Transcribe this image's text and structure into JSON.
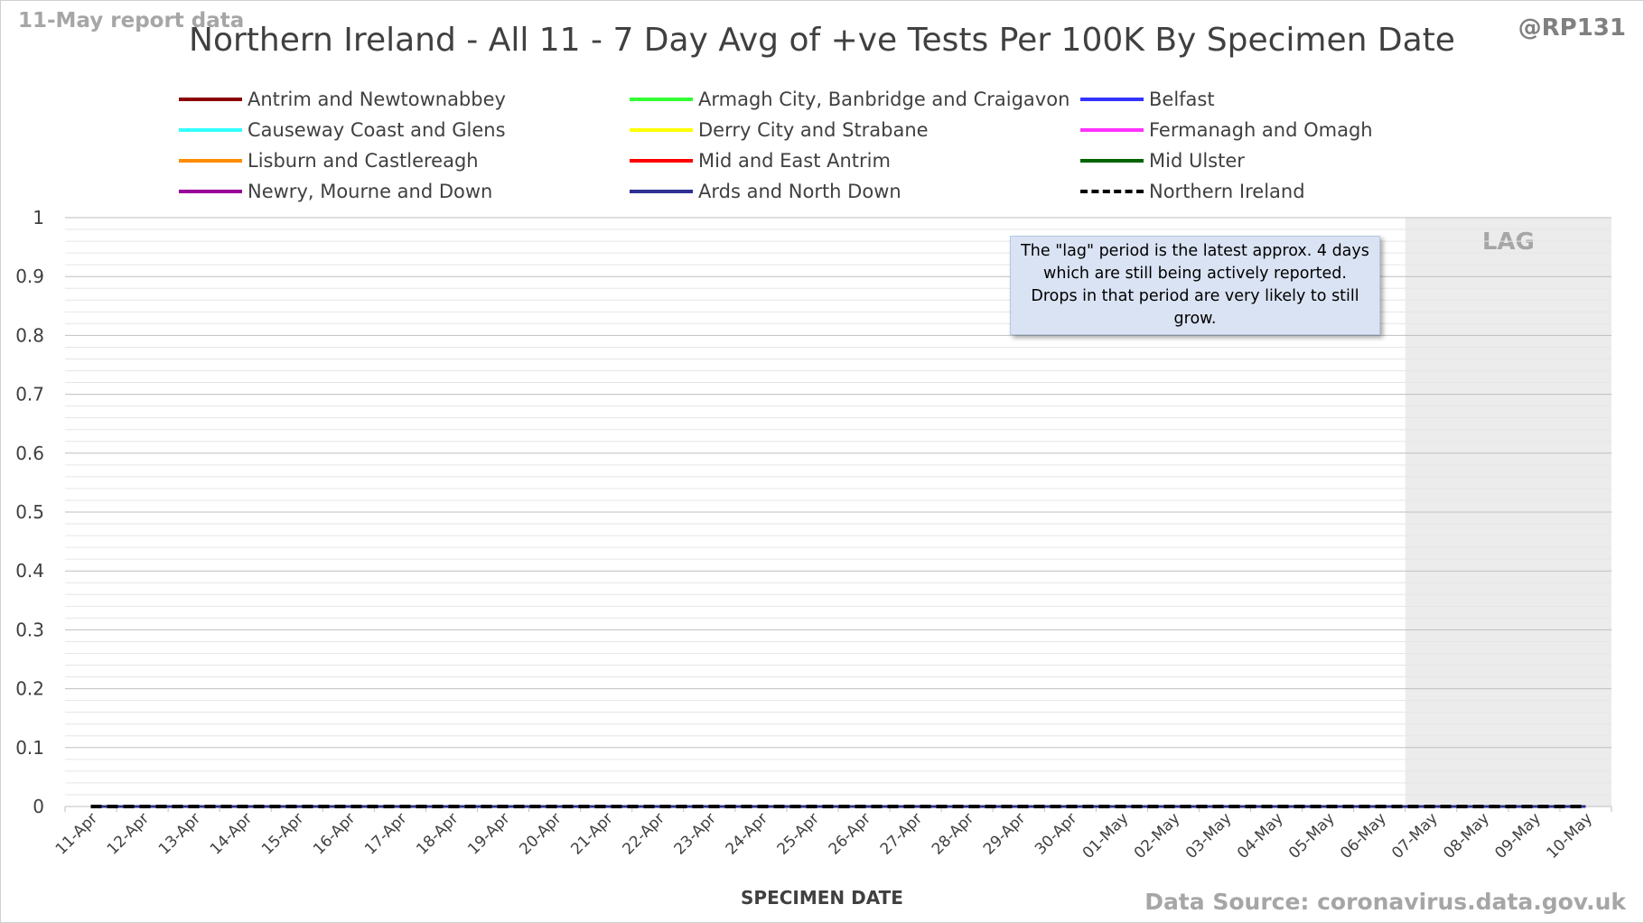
{
  "header": {
    "report_date": "11-May report data",
    "title": "Northern Ireland - All 11 - 7 Day Avg of +ve Tests Per 100K By Specimen Date",
    "handle": "@RP131"
  },
  "footer": {
    "source": "Data Source: coronavirus.data.gov.uk"
  },
  "note": "The \"lag\" period is the latest approx. 4 days which are still being actively reported. Drops in that period are very likely to still grow.",
  "lag_label": "LAG",
  "chart_data": {
    "type": "line",
    "xlabel": "SPECIMEN DATE",
    "ylabel": "",
    "ylim": [
      0,
      1
    ],
    "y_ticks": [
      "0",
      "0.1",
      "0.2",
      "0.3",
      "0.4",
      "0.5",
      "0.6",
      "0.7",
      "0.8",
      "0.9",
      "1"
    ],
    "grid": true,
    "legend_position": "top",
    "categories": [
      "11-Apr",
      "12-Apr",
      "13-Apr",
      "14-Apr",
      "15-Apr",
      "16-Apr",
      "17-Apr",
      "18-Apr",
      "19-Apr",
      "20-Apr",
      "21-Apr",
      "22-Apr",
      "23-Apr",
      "24-Apr",
      "25-Apr",
      "26-Apr",
      "27-Apr",
      "28-Apr",
      "29-Apr",
      "30-Apr",
      "01-May",
      "02-May",
      "03-May",
      "04-May",
      "05-May",
      "06-May",
      "07-May",
      "08-May",
      "09-May",
      "10-May"
    ],
    "lag_start": "07-May",
    "series": [
      {
        "name": "Antrim and Newtownabbey",
        "color": "#8b0000",
        "dashed": false,
        "values": [
          0,
          0,
          0,
          0,
          0,
          0,
          0,
          0,
          0,
          0,
          0,
          0,
          0,
          0,
          0,
          0,
          0,
          0,
          0,
          0,
          0,
          0,
          0,
          0,
          0,
          0,
          0,
          0,
          0,
          0
        ]
      },
      {
        "name": "Armagh City, Banbridge and Craigavon",
        "color": "#33ff33",
        "dashed": false,
        "values": [
          0,
          0,
          0,
          0,
          0,
          0,
          0,
          0,
          0,
          0,
          0,
          0,
          0,
          0,
          0,
          0,
          0,
          0,
          0,
          0,
          0,
          0,
          0,
          0,
          0,
          0,
          0,
          0,
          0,
          0
        ]
      },
      {
        "name": "Belfast",
        "color": "#3333ff",
        "dashed": false,
        "values": [
          0,
          0,
          0,
          0,
          0,
          0,
          0,
          0,
          0,
          0,
          0,
          0,
          0,
          0,
          0,
          0,
          0,
          0,
          0,
          0,
          0,
          0,
          0,
          0,
          0,
          0,
          0,
          0,
          0,
          0
        ]
      },
      {
        "name": "Causeway Coast and Glens",
        "color": "#33ffff",
        "dashed": false,
        "values": [
          0,
          0,
          0,
          0,
          0,
          0,
          0,
          0,
          0,
          0,
          0,
          0,
          0,
          0,
          0,
          0,
          0,
          0,
          0,
          0,
          0,
          0,
          0,
          0,
          0,
          0,
          0,
          0,
          0,
          0
        ]
      },
      {
        "name": "Derry City and Strabane",
        "color": "#ffff00",
        "dashed": false,
        "values": [
          0,
          0,
          0,
          0,
          0,
          0,
          0,
          0,
          0,
          0,
          0,
          0,
          0,
          0,
          0,
          0,
          0,
          0,
          0,
          0,
          0,
          0,
          0,
          0,
          0,
          0,
          0,
          0,
          0,
          0
        ]
      },
      {
        "name": "Fermanagh and Omagh",
        "color": "#ff33ff",
        "dashed": false,
        "values": [
          0,
          0,
          0,
          0,
          0,
          0,
          0,
          0,
          0,
          0,
          0,
          0,
          0,
          0,
          0,
          0,
          0,
          0,
          0,
          0,
          0,
          0,
          0,
          0,
          0,
          0,
          0,
          0,
          0,
          0
        ]
      },
      {
        "name": "Lisburn and Castlereagh",
        "color": "#ff8c00",
        "dashed": false,
        "values": [
          0,
          0,
          0,
          0,
          0,
          0,
          0,
          0,
          0,
          0,
          0,
          0,
          0,
          0,
          0,
          0,
          0,
          0,
          0,
          0,
          0,
          0,
          0,
          0,
          0,
          0,
          0,
          0,
          0,
          0
        ]
      },
      {
        "name": "Mid and East Antrim",
        "color": "#ff0000",
        "dashed": false,
        "values": [
          0,
          0,
          0,
          0,
          0,
          0,
          0,
          0,
          0,
          0,
          0,
          0,
          0,
          0,
          0,
          0,
          0,
          0,
          0,
          0,
          0,
          0,
          0,
          0,
          0,
          0,
          0,
          0,
          0,
          0
        ]
      },
      {
        "name": "Mid Ulster",
        "color": "#006400",
        "dashed": false,
        "values": [
          0,
          0,
          0,
          0,
          0,
          0,
          0,
          0,
          0,
          0,
          0,
          0,
          0,
          0,
          0,
          0,
          0,
          0,
          0,
          0,
          0,
          0,
          0,
          0,
          0,
          0,
          0,
          0,
          0,
          0
        ]
      },
      {
        "name": "Newry, Mourne and Down",
        "color": "#990099",
        "dashed": false,
        "values": [
          0,
          0,
          0,
          0,
          0,
          0,
          0,
          0,
          0,
          0,
          0,
          0,
          0,
          0,
          0,
          0,
          0,
          0,
          0,
          0,
          0,
          0,
          0,
          0,
          0,
          0,
          0,
          0,
          0,
          0
        ]
      },
      {
        "name": "Ards and North Down",
        "color": "#2e3192",
        "dashed": false,
        "values": [
          0,
          0,
          0,
          0,
          0,
          0,
          0,
          0,
          0,
          0,
          0,
          0,
          0,
          0,
          0,
          0,
          0,
          0,
          0,
          0,
          0,
          0,
          0,
          0,
          0,
          0,
          0,
          0,
          0,
          0
        ]
      },
      {
        "name": "Northern Ireland",
        "color": "#000000",
        "dashed": true,
        "values": [
          0,
          0,
          0,
          0,
          0,
          0,
          0,
          0,
          0,
          0,
          0,
          0,
          0,
          0,
          0,
          0,
          0,
          0,
          0,
          0,
          0,
          0,
          0,
          0,
          0,
          0,
          0,
          0,
          0,
          0
        ]
      }
    ]
  }
}
